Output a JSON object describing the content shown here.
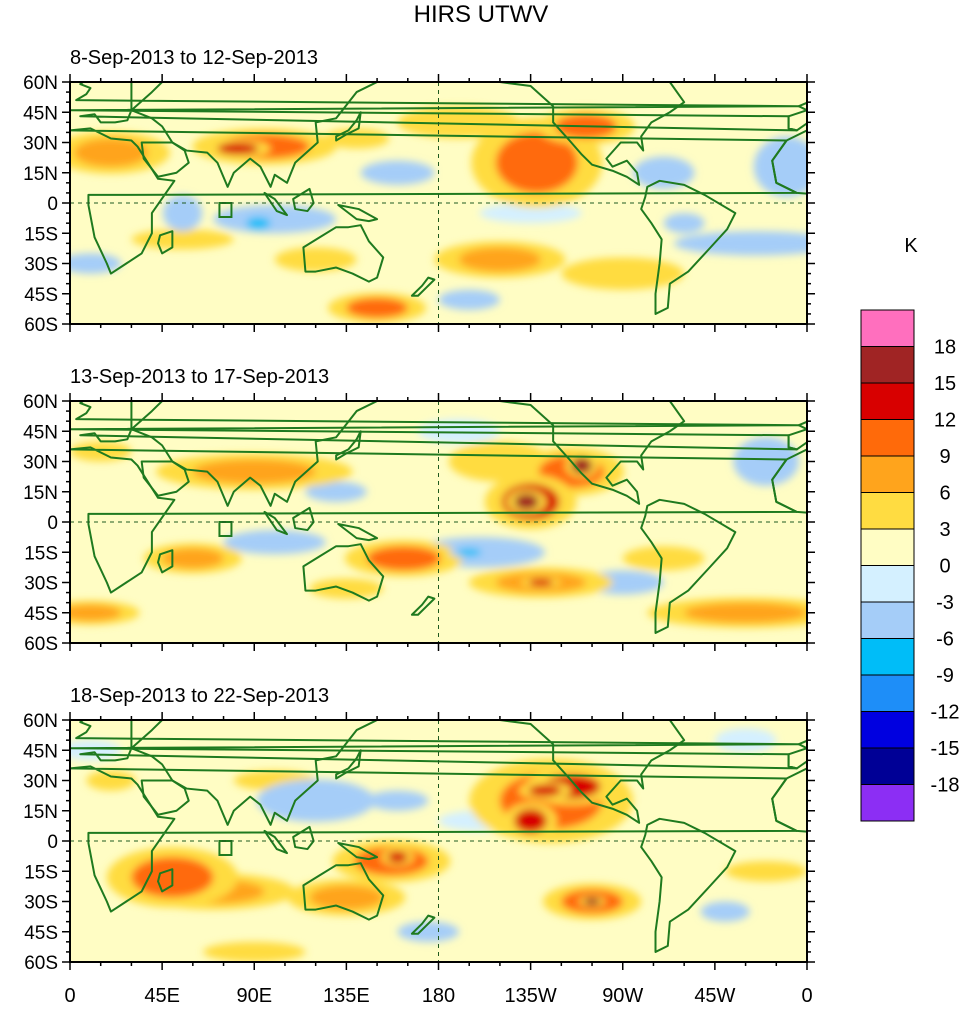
{
  "chart_data": {
    "type": "heatmap",
    "title": "HIRS UTWV",
    "units": "K",
    "y_ticks": [
      "60N",
      "45N",
      "30N",
      "15N",
      "0",
      "15S",
      "30S",
      "45S",
      "60S"
    ],
    "x_ticks": [
      "0",
      "45E",
      "90E",
      "135E",
      "180",
      "135W",
      "90W",
      "45W",
      "0"
    ],
    "ylim": [
      -60,
      60
    ],
    "xlim": [
      0,
      360
    ],
    "colorbar": {
      "labels": [
        "18",
        "15",
        "12",
        "9",
        "6",
        "3",
        "0",
        "-3",
        "-6",
        "-9",
        "-12",
        "-15",
        "-18"
      ],
      "colors": [
        "#ff6fbe",
        "#a02424",
        "#d80000",
        "#ff6a0a",
        "#ffa41c",
        "#ffdc41",
        "#fffdc4",
        "#d4f0ff",
        "#a5cdf8",
        "#00bdf8",
        "#1e8ef8",
        "#0000e0",
        "#000096",
        "#8c2ef4"
      ]
    },
    "panels": [
      {
        "label": "8-Sep-2013 to 12-Sep-2013",
        "blobs": [
          {
            "lon": 20,
            "lat": 25,
            "rx": 18,
            "ry": 7,
            "v": 6
          },
          {
            "lon": 95,
            "lat": 28,
            "rx": 22,
            "ry": 6,
            "v": 9
          },
          {
            "lon": 82,
            "lat": 27,
            "rx": 10,
            "ry": 3,
            "v": 15
          },
          {
            "lon": 140,
            "lat": 32,
            "rx": 16,
            "ry": 5,
            "v": 4
          },
          {
            "lon": 190,
            "lat": 40,
            "rx": 30,
            "ry": 8,
            "v": 5
          },
          {
            "lon": 228,
            "lat": 20,
            "rx": 20,
            "ry": 15,
            "v": 9
          },
          {
            "lon": 252,
            "lat": 38,
            "rx": 15,
            "ry": 6,
            "v": 9
          },
          {
            "lon": 55,
            "lat": -18,
            "rx": 25,
            "ry": 5,
            "v": 5
          },
          {
            "lon": 120,
            "lat": -28,
            "rx": 20,
            "ry": 6,
            "v": 4
          },
          {
            "lon": 150,
            "lat": -52,
            "rx": 15,
            "ry": 5,
            "v": 9
          },
          {
            "lon": 210,
            "lat": -28,
            "rx": 20,
            "ry": 6,
            "v": 6
          },
          {
            "lon": 270,
            "lat": -35,
            "rx": 30,
            "ry": 8,
            "v": 5
          },
          {
            "lon": 100,
            "lat": -8,
            "rx": 30,
            "ry": 7,
            "v": -4
          },
          {
            "lon": 92,
            "lat": -10,
            "rx": 6,
            "ry": 3,
            "v": -9
          },
          {
            "lon": 55,
            "lat": -5,
            "rx": 6,
            "ry": 6,
            "v": -6
          },
          {
            "lon": 335,
            "lat": -20,
            "rx": 25,
            "ry": 4,
            "v": -6
          },
          {
            "lon": 300,
            "lat": -10,
            "rx": 10,
            "ry": 5,
            "v": -5
          },
          {
            "lon": 160,
            "lat": 15,
            "rx": 18,
            "ry": 6,
            "v": -4
          },
          {
            "lon": 225,
            "lat": -5,
            "rx": 25,
            "ry": 5,
            "v": -3
          },
          {
            "lon": 290,
            "lat": 15,
            "rx": 15,
            "ry": 8,
            "v": -4
          },
          {
            "lon": 10,
            "lat": -30,
            "rx": 15,
            "ry": 5,
            "v": -4
          },
          {
            "lon": 195,
            "lat": -48,
            "rx": 15,
            "ry": 5,
            "v": -5
          },
          {
            "lon": 350,
            "lat": 18,
            "rx": 10,
            "ry": 10,
            "v": -6
          }
        ]
      },
      {
        "label": "13-Sep-2013 to 17-Sep-2013",
        "blobs": [
          {
            "lon": 90,
            "lat": 25,
            "rx": 30,
            "ry": 6,
            "v": 6
          },
          {
            "lon": 15,
            "lat": 35,
            "rx": 15,
            "ry": 5,
            "v": 4
          },
          {
            "lon": 225,
            "lat": 10,
            "rx": 14,
            "ry": 9,
            "v": 12
          },
          {
            "lon": 223,
            "lat": 10,
            "rx": 6,
            "ry": 4,
            "v": 18
          },
          {
            "lon": 245,
            "lat": 25,
            "rx": 16,
            "ry": 8,
            "v": 9
          },
          {
            "lon": 250,
            "lat": 28,
            "rx": 5,
            "ry": 4,
            "v": 18
          },
          {
            "lon": 210,
            "lat": 30,
            "rx": 25,
            "ry": 10,
            "v": 5
          },
          {
            "lon": 163,
            "lat": -18,
            "rx": 18,
            "ry": 6,
            "v": 9
          },
          {
            "lon": 230,
            "lat": -30,
            "rx": 22,
            "ry": 5,
            "v": 8
          },
          {
            "lon": 230,
            "lat": -30,
            "rx": 6,
            "ry": 2,
            "v": 15
          },
          {
            "lon": 330,
            "lat": -45,
            "rx": 30,
            "ry": 5,
            "v": 8
          },
          {
            "lon": 10,
            "lat": -45,
            "rx": 15,
            "ry": 4,
            "v": 8
          },
          {
            "lon": 60,
            "lat": -18,
            "rx": 15,
            "ry": 5,
            "v": 6
          },
          {
            "lon": 135,
            "lat": -33,
            "rx": 18,
            "ry": 5,
            "v": 4
          },
          {
            "lon": 290,
            "lat": -18,
            "rx": 20,
            "ry": 6,
            "v": 4
          },
          {
            "lon": 100,
            "lat": -10,
            "rx": 25,
            "ry": 6,
            "v": -4
          },
          {
            "lon": 200,
            "lat": -15,
            "rx": 20,
            "ry": 5,
            "v": -6
          },
          {
            "lon": 195,
            "lat": -15,
            "rx": 6,
            "ry": 2,
            "v": -9
          },
          {
            "lon": 270,
            "lat": -30,
            "rx": 20,
            "ry": 6,
            "v": -4
          },
          {
            "lon": 340,
            "lat": 30,
            "rx": 10,
            "ry": 8,
            "v": -6
          },
          {
            "lon": 130,
            "lat": 15,
            "rx": 15,
            "ry": 5,
            "v": -4
          },
          {
            "lon": 190,
            "lat": 45,
            "rx": 20,
            "ry": 6,
            "v": -3
          }
        ]
      },
      {
        "label": "18-Sep-2013 to 22-Sep-2013",
        "blobs": [
          {
            "lon": 235,
            "lat": 20,
            "rx": 25,
            "ry": 14,
            "v": 9
          },
          {
            "lon": 245,
            "lat": 27,
            "rx": 14,
            "ry": 6,
            "v": 12
          },
          {
            "lon": 225,
            "lat": 10,
            "rx": 8,
            "ry": 6,
            "v": 12
          },
          {
            "lon": 232,
            "lat": 25,
            "rx": 8,
            "ry": 3,
            "v": 15
          },
          {
            "lon": 157,
            "lat": -10,
            "rx": 18,
            "ry": 7,
            "v": 9
          },
          {
            "lon": 160,
            "lat": -8,
            "rx": 5,
            "ry": 3,
            "v": 15
          },
          {
            "lon": 50,
            "lat": -18,
            "rx": 20,
            "ry": 10,
            "v": 9
          },
          {
            "lon": 70,
            "lat": -25,
            "rx": 25,
            "ry": 6,
            "v": 6
          },
          {
            "lon": 135,
            "lat": -28,
            "rx": 18,
            "ry": 6,
            "v": 6
          },
          {
            "lon": 255,
            "lat": -30,
            "rx": 15,
            "ry": 6,
            "v": 9
          },
          {
            "lon": 255,
            "lat": -30,
            "rx": 4,
            "ry": 2,
            "v": 18
          },
          {
            "lon": 100,
            "lat": 30,
            "rx": 20,
            "ry": 5,
            "v": 4
          },
          {
            "lon": 20,
            "lat": 30,
            "rx": 12,
            "ry": 5,
            "v": 4
          },
          {
            "lon": 90,
            "lat": -55,
            "rx": 25,
            "ry": 5,
            "v": 4
          },
          {
            "lon": 340,
            "lat": -15,
            "rx": 20,
            "ry": 5,
            "v": 4
          },
          {
            "lon": 120,
            "lat": 20,
            "rx": 18,
            "ry": 7,
            "v": -6
          },
          {
            "lon": 160,
            "lat": 20,
            "rx": 15,
            "ry": 5,
            "v": -4
          },
          {
            "lon": 200,
            "lat": 10,
            "rx": 20,
            "ry": 5,
            "v": -3
          },
          {
            "lon": 175,
            "lat": -45,
            "rx": 15,
            "ry": 5,
            "v": -5
          },
          {
            "lon": 320,
            "lat": -35,
            "rx": 12,
            "ry": 5,
            "v": -5
          },
          {
            "lon": 10,
            "lat": 45,
            "rx": 15,
            "ry": 5,
            "v": -3
          },
          {
            "lon": 330,
            "lat": 50,
            "rx": 15,
            "ry": 6,
            "v": -3
          }
        ]
      }
    ]
  }
}
